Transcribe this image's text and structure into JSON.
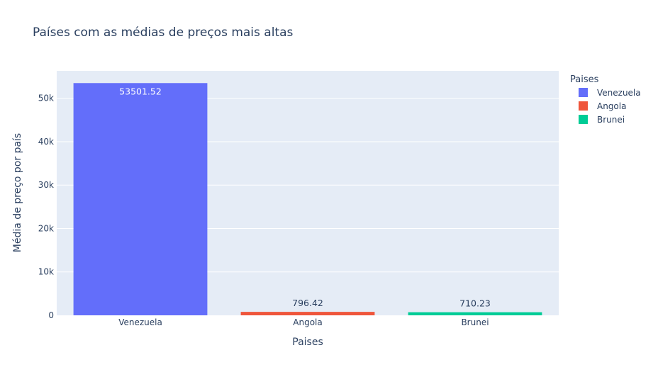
{
  "chart_data": {
    "type": "bar",
    "title": "Países com as médias de preços mais altas",
    "xlabel": "Paises",
    "ylabel": "Média de preço por país",
    "categories": [
      "Venezuela",
      "Angola",
      "Brunei"
    ],
    "values": [
      53501.52,
      796.42,
      710.23
    ],
    "data_labels": [
      "53501.52",
      "796.42",
      "710.23"
    ],
    "colors": [
      "#636efa",
      "#ef553b",
      "#00cc96"
    ],
    "ylim": [
      0,
      56318
    ],
    "yticks": [
      0,
      10000,
      20000,
      30000,
      40000,
      50000
    ],
    "ytick_labels": [
      "0",
      "10k",
      "20k",
      "30k",
      "40k",
      "50k"
    ],
    "grid": true,
    "legend": {
      "title": "Paises",
      "placement": "top-right",
      "items": [
        "Venezuela",
        "Angola",
        "Brunei"
      ]
    },
    "plot_background": "#e5ecf6",
    "text_color": "#2a3f5f"
  }
}
